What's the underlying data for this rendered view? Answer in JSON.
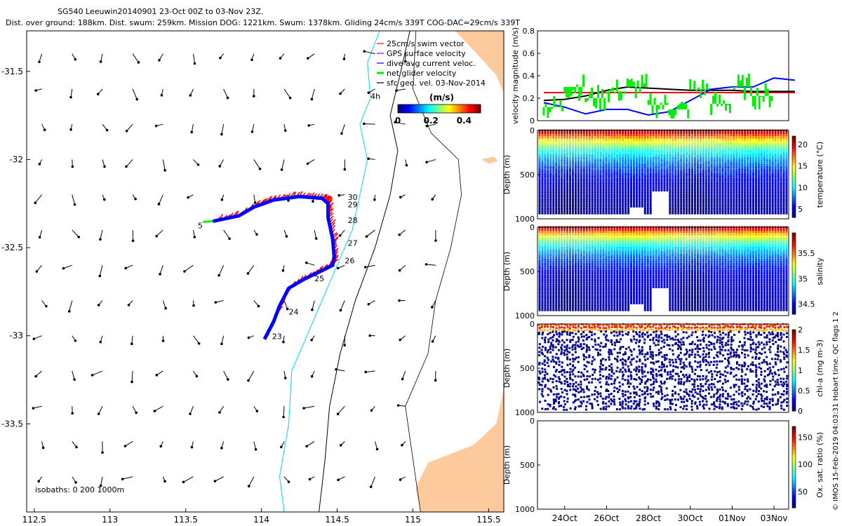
{
  "header": {
    "line1": "SG540 Leeuwin20140901 23-Oct 00Z to 03-Nov 23Z.",
    "line2": "Dist. over ground: 188km. Dist. swum: 259km. Mission DOG: 1221km. Swum: 1378km. Gliding 24cm/s 339T COG-DAC=29cm/s 339T"
  },
  "colors": {
    "land": "#fcca9c",
    "isobath_200": "#00d8ee",
    "isobath_1000": "#000000",
    "swim": "#ff0000",
    "gps": "#a000d0",
    "dac": "#0000ff",
    "net": "#00ee00",
    "geo": "#000000"
  },
  "map": {
    "legend": [
      "25cm/s swim vector",
      "GPS surface velocity",
      "dive-avg current veloc.",
      "net glider velocity",
      "sfc geo. vel. 03-Nov-2014"
    ],
    "colorbar": {
      "unit": "(m/s)",
      "ticks": [
        "0",
        "0.2",
        "0.4"
      ],
      "range": [
        0,
        0.5
      ]
    },
    "isobaths_label": "isobaths: 0   200  1000m",
    "place_label": "4h",
    "xticks": [
      "112.5",
      "113",
      "113.5",
      "114",
      "114.5",
      "115",
      "115.5"
    ],
    "yticks": [
      "-31.5",
      "-32",
      "-32.5",
      "-33",
      "-33.5"
    ],
    "xlim": [
      112.45,
      115.6
    ],
    "ylim": [
      -34.0,
      -31.27
    ],
    "day_labels": [
      {
        "text": "23",
        "lon": 114.07,
        "lat": -33.02
      },
      {
        "text": "24",
        "lon": 114.18,
        "lat": -32.88
      },
      {
        "text": "25",
        "lon": 114.35,
        "lat": -32.69
      },
      {
        "text": "26",
        "lon": 114.55,
        "lat": -32.59
      },
      {
        "text": "27",
        "lon": 114.57,
        "lat": -32.49
      },
      {
        "text": "28",
        "lon": 114.57,
        "lat": -32.36
      },
      {
        "text": "29",
        "lon": 114.57,
        "lat": -32.27
      },
      {
        "text": "30",
        "lon": 114.57,
        "lat": -32.23
      },
      {
        "text": "5",
        "lon": 113.58,
        "lat": -32.39
      }
    ],
    "track": [
      [
        114.02,
        -33.02
      ],
      [
        114.08,
        -32.92
      ],
      [
        114.12,
        -32.83
      ],
      [
        114.18,
        -32.73
      ],
      [
        114.28,
        -32.68
      ],
      [
        114.4,
        -32.63
      ],
      [
        114.47,
        -32.6
      ],
      [
        114.48,
        -32.55
      ],
      [
        114.47,
        -32.45
      ],
      [
        114.44,
        -32.33
      ],
      [
        114.44,
        -32.25
      ],
      [
        114.4,
        -32.22
      ],
      [
        114.25,
        -32.21
      ],
      [
        114.08,
        -32.23
      ],
      [
        113.95,
        -32.27
      ],
      [
        113.85,
        -32.32
      ],
      [
        113.68,
        -32.35
      ]
    ]
  },
  "chart_data": [
    {
      "type": "line",
      "ylabel": "velocity magnitude (m/s)",
      "ylim": [
        0,
        0.8
      ],
      "yticks": [
        "0",
        "0.2",
        "0.4",
        "0.6",
        "0.8"
      ],
      "x": [
        23,
        24,
        25,
        26,
        27,
        28,
        29,
        30,
        31,
        32,
        33,
        34,
        35
      ],
      "series": [
        {
          "color": "#ff0000",
          "values": [
            0.25,
            0.25,
            0.25,
            0.25,
            0.25,
            0.25,
            0.25,
            0.25,
            0.25,
            0.25,
            0.25,
            0.25,
            0.25
          ]
        },
        {
          "color": "#000000",
          "values": [
            0.18,
            0.19,
            0.22,
            0.27,
            0.3,
            0.29,
            0.28,
            0.27,
            0.27,
            0.27,
            0.26,
            0.26,
            0.26
          ]
        },
        {
          "color": "#0000ff",
          "values": [
            0.16,
            0.12,
            0.06,
            0.1,
            0.1,
            0.05,
            0.08,
            0.18,
            0.28,
            0.3,
            0.3,
            0.38,
            0.36
          ]
        },
        {
          "color": "#00ee00",
          "values": [
            0.12,
            0.3,
            0.2,
            0.26,
            0.3,
            0.14,
            0.1,
            0.28,
            0.15,
            0.3,
            0.22,
            0.3,
            0.33
          ]
        }
      ]
    },
    {
      "type": "heatmap",
      "ylabel": "Depth (m)",
      "cbar_label": "temperature (°C)",
      "cticks": [
        "5",
        "10",
        "15",
        "20"
      ],
      "crange": [
        3,
        22
      ],
      "ylim": [
        1000,
        0
      ],
      "yticks": [
        "0",
        "500",
        "1000"
      ]
    },
    {
      "type": "heatmap",
      "ylabel": "Depth (m)",
      "cbar_label": "salinity",
      "cticks": [
        "34.5",
        "35",
        "35.5"
      ],
      "crange": [
        34.3,
        35.9
      ],
      "ylim": [
        1000,
        0
      ],
      "yticks": [
        "0",
        "500",
        "1000"
      ]
    },
    {
      "type": "heatmap",
      "ylabel": "Depth (m)",
      "cbar_label": "chl-a (mg m-3)",
      "cticks": [
        "0",
        "0.5",
        "1",
        "1.5",
        "2"
      ],
      "crange": [
        0,
        2
      ],
      "ylim": [
        1000,
        0
      ],
      "yticks": [
        "0",
        "500",
        "1000"
      ]
    },
    {
      "type": "heatmap",
      "ylabel": "Depth (m)",
      "cbar_label": "Ox. sat. ratio (%)",
      "cticks": [
        "50",
        "100",
        "150"
      ],
      "crange": [
        20,
        170
      ],
      "ylim": [
        1000,
        0
      ],
      "yticks": [
        "0",
        "500",
        "1000"
      ]
    }
  ],
  "time_axis": {
    "xlim": [
      22.7,
      34.7
    ],
    "ticks": [
      {
        "label": "24Oct",
        "day": 24
      },
      {
        "label": "26Oct",
        "day": 26
      },
      {
        "label": "28Oct",
        "day": 28
      },
      {
        "label": "30Oct",
        "day": 30
      },
      {
        "label": "01Nov",
        "day": 32
      },
      {
        "label": "03Nov",
        "day": 34
      }
    ]
  },
  "credit": "© IMOS 15-Feb-2019 04:03:31 Hobart time. QC flags 1  2"
}
